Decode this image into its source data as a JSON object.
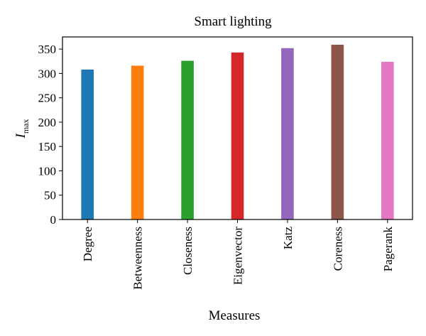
{
  "chart_data": {
    "type": "bar",
    "title": "Smart lighting",
    "xlabel": "Measures",
    "ylabel": {
      "main": "I",
      "subscript": "max"
    },
    "categories": [
      "Degree",
      "Betweenness",
      "Closeness",
      "Eigenvector",
      "Katz",
      "Coreness",
      "Pagerank"
    ],
    "values": [
      308,
      316,
      326,
      343,
      352,
      359,
      324
    ],
    "colors": [
      "#1f77b4",
      "#ff7f0e",
      "#2ca02c",
      "#d62728",
      "#9467bd",
      "#8c564b",
      "#e377c2"
    ],
    "ylim": [
      0,
      375
    ],
    "yticks": [
      "0",
      "50",
      "100",
      "150",
      "200",
      "250",
      "300",
      "350"
    ],
    "grid": false,
    "legend": false
  }
}
